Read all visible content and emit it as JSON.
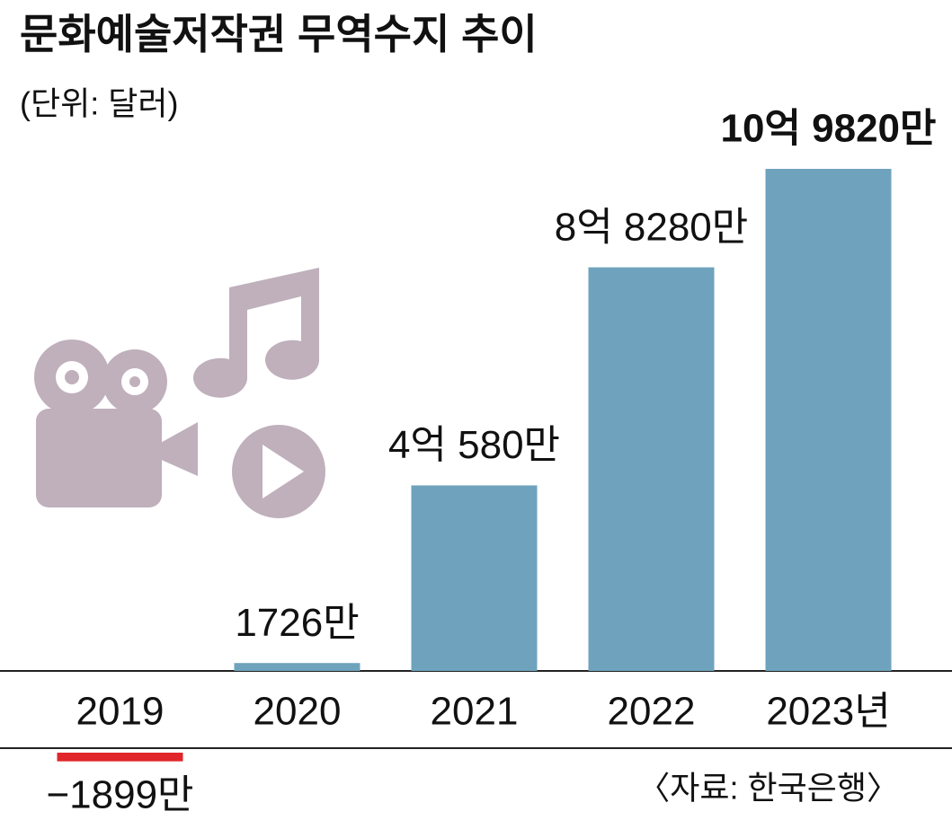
{
  "chart_data": {
    "type": "bar",
    "title": "문화예술저작권 무역수지 추이",
    "subtitle": "(단위: 달러)",
    "categories": [
      "2019",
      "2020",
      "2021",
      "2022",
      "2023년"
    ],
    "values": [
      -1899,
      1726,
      40580,
      88280,
      109820
    ],
    "value_labels": [
      "−1899만",
      "1726만",
      "4억 580만",
      "8억 8280만",
      "10억 9820만"
    ],
    "color": "#6fa3bd",
    "negative_color": "#e0262a",
    "source": "〈자료: 한국은행〉"
  }
}
